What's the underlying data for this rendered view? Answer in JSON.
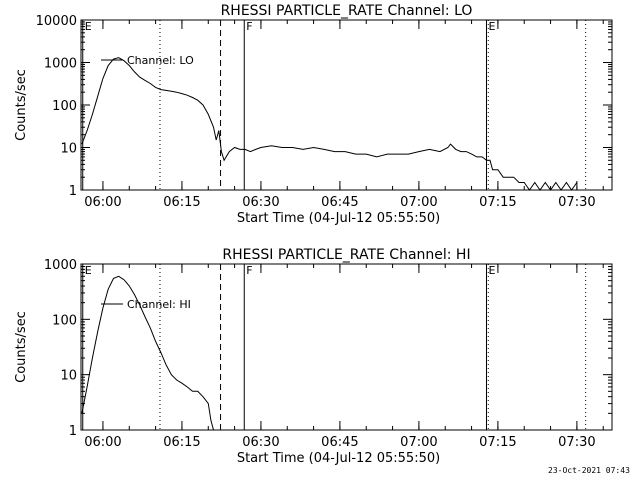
{
  "chart_data": [
    {
      "type": "line",
      "title": "RHESSI PARTICLE_RATE Channel: LO",
      "xlabel": "Start Time (04-Jul-12 05:55:50)",
      "ylabel": "Counts/sec",
      "x_ticks": [
        "06:00",
        "06:15",
        "06:30",
        "06:45",
        "07:00",
        "07:15",
        "07:30"
      ],
      "y_ticks": [
        "1",
        "10",
        "100",
        "1000",
        "10000"
      ],
      "y_scale": "log",
      "ylim": [
        1,
        10000
      ],
      "xlim": [
        "05:55:50",
        "07:36:40"
      ],
      "grid": false,
      "legend": {
        "entries": [
          "Channel: LO"
        ],
        "position": "top-left"
      },
      "annotations": [
        {
          "text": "E",
          "x": "05:56:10",
          "style": "solid"
        },
        {
          "text": "",
          "x": "06:10:50",
          "style": "dotted"
        },
        {
          "text": "",
          "x": "06:22:20",
          "style": "dashed"
        },
        {
          "text": "F",
          "x": "06:26:50",
          "style": "solid"
        },
        {
          "text": "E",
          "x": "07:12:50",
          "style": "solid"
        },
        {
          "text": "",
          "x": "07:13:10",
          "style": "dotted"
        },
        {
          "text": "",
          "x": "07:31:40",
          "style": "dotted"
        }
      ],
      "series": [
        {
          "name": "Channel: LO",
          "x": [
            "05:56:00",
            "05:57:00",
            "05:58:00",
            "05:59:00",
            "06:00:00",
            "06:01:00",
            "06:02:00",
            "06:03:00",
            "06:04:00",
            "06:05:00",
            "06:06:00",
            "06:07:00",
            "06:08:00",
            "06:09:00",
            "06:10:00",
            "06:11:00",
            "06:12:00",
            "06:13:00",
            "06:14:00",
            "06:15:00",
            "06:16:00",
            "06:17:00",
            "06:18:00",
            "06:19:00",
            "06:20:00",
            "06:21:00",
            "06:21:30",
            "06:22:00",
            "06:22:30",
            "06:23:00",
            "06:24:00",
            "06:25:00",
            "06:26:00",
            "06:27:00",
            "06:28:00",
            "06:29:00",
            "06:30:00",
            "06:32:00",
            "06:34:00",
            "06:36:00",
            "06:38:00",
            "06:40:00",
            "06:42:00",
            "06:44:00",
            "06:46:00",
            "06:48:00",
            "06:50:00",
            "06:52:00",
            "06:54:00",
            "06:56:00",
            "06:58:00",
            "07:00:00",
            "07:02:00",
            "07:04:00",
            "07:05:30",
            "07:06:00",
            "07:07:00",
            "07:08:00",
            "07:09:00",
            "07:10:00",
            "07:11:00",
            "07:12:00",
            "07:12:50",
            "07:13:30",
            "07:14:00",
            "07:15:00",
            "07:16:00",
            "07:17:00",
            "07:18:00",
            "07:19:00",
            "07:20:00",
            "07:21:00",
            "07:22:00",
            "07:23:00",
            "07:24:00",
            "07:25:00",
            "07:26:00",
            "07:27:00",
            "07:28:00",
            "07:29:00",
            "07:30:00"
          ],
          "y": [
            12,
            25,
            60,
            160,
            420,
            850,
            1200,
            1300,
            1100,
            850,
            600,
            450,
            380,
            320,
            260,
            230,
            220,
            210,
            200,
            185,
            170,
            150,
            130,
            100,
            60,
            30,
            15,
            25,
            8,
            5,
            8,
            10,
            9,
            9,
            8,
            9,
            10,
            11,
            10,
            10,
            9,
            10,
            9,
            8,
            8,
            7,
            7,
            6,
            7,
            7,
            7,
            8,
            9,
            8,
            10,
            12,
            9,
            8,
            8,
            7,
            6,
            6,
            5,
            5,
            3,
            3,
            2,
            2,
            2,
            1.5,
            1.5,
            1,
            1.5,
            1,
            1.5,
            1,
            1.5,
            1,
            1.5,
            1,
            1.5
          ]
        }
      ]
    },
    {
      "type": "line",
      "title": "RHESSI PARTICLE_RATE Channel: HI",
      "xlabel": "Start Time (04-Jul-12 05:55:50)",
      "ylabel": "Counts/sec",
      "x_ticks": [
        "06:00",
        "06:15",
        "06:30",
        "06:45",
        "07:00",
        "07:15",
        "07:30"
      ],
      "y_ticks": [
        "1",
        "10",
        "100",
        "1000"
      ],
      "y_scale": "log",
      "ylim": [
        1,
        1000
      ],
      "xlim": [
        "05:55:50",
        "07:36:40"
      ],
      "grid": false,
      "legend": {
        "entries": [
          "Channel: HI"
        ],
        "position": "top-left"
      },
      "annotations": [
        {
          "text": "E",
          "x": "05:56:10",
          "style": "solid"
        },
        {
          "text": "",
          "x": "06:10:50",
          "style": "dotted"
        },
        {
          "text": "",
          "x": "06:22:20",
          "style": "dashed"
        },
        {
          "text": "F",
          "x": "06:26:50",
          "style": "solid"
        },
        {
          "text": "E",
          "x": "07:12:50",
          "style": "solid"
        },
        {
          "text": "",
          "x": "07:13:10",
          "style": "dotted"
        },
        {
          "text": "",
          "x": "07:31:40",
          "style": "dotted"
        }
      ],
      "series": [
        {
          "name": "Channel: HI",
          "x": [
            "05:56:00",
            "05:57:00",
            "05:58:00",
            "05:59:00",
            "06:00:00",
            "06:01:00",
            "06:02:00",
            "06:03:00",
            "06:04:00",
            "06:05:00",
            "06:06:00",
            "06:07:00",
            "06:08:00",
            "06:09:00",
            "06:10:00",
            "06:11:00",
            "06:12:00",
            "06:13:00",
            "06:14:00",
            "06:15:00",
            "06:16:00",
            "06:17:00",
            "06:18:00",
            "06:19:00",
            "06:20:00",
            "06:20:30",
            "06:21:00"
          ],
          "y": [
            2,
            6,
            20,
            60,
            160,
            350,
            550,
            600,
            520,
            400,
            280,
            180,
            110,
            70,
            40,
            25,
            15,
            10,
            8,
            7,
            6,
            5,
            5,
            4,
            3,
            1.5,
            1
          ]
        }
      ]
    }
  ],
  "footer": {
    "date_stamp": "23-Oct-2021 07:43"
  }
}
